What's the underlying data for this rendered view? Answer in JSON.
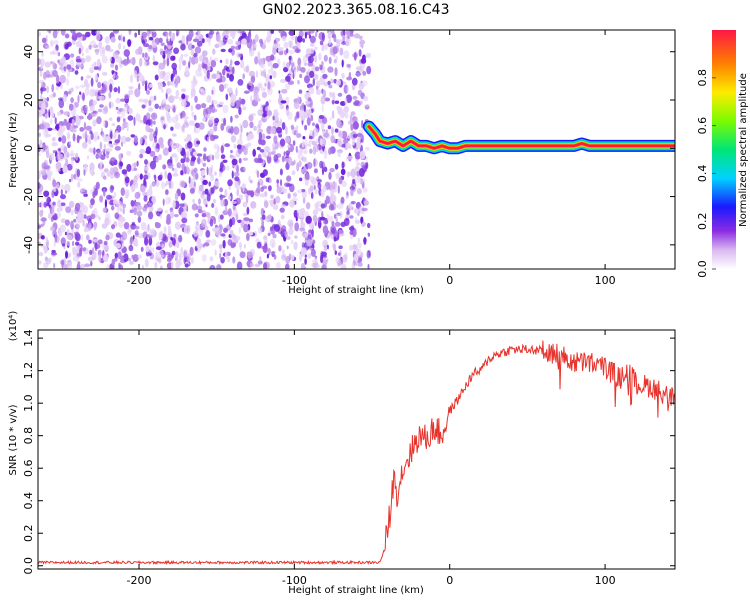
{
  "figure_title": "GN02.2023.365.08.16.C43",
  "chart_data": [
    {
      "type": "heatmap",
      "xlabel": "Height of straight line (km)",
      "ylabel": "Frequency (Hz)",
      "xlim": [
        -265,
        145
      ],
      "ylim": [
        -50,
        49
      ],
      "x_ticks": [
        -200,
        -100,
        0,
        100
      ],
      "y_ticks": [
        -40,
        -20,
        0,
        20,
        40
      ],
      "colorbar": {
        "label": "Normalized spectral amplitude",
        "range": [
          0,
          1
        ],
        "ticks": [
          0.0,
          0.2,
          0.4,
          0.6,
          0.8
        ]
      },
      "noise_region_x": [
        -265,
        -52
      ],
      "signal_track": {
        "x": [
          -52,
          -48,
          -45,
          -40,
          -35,
          -30,
          -25,
          -20,
          -15,
          -10,
          -5,
          0,
          5,
          10,
          20,
          40,
          60,
          75,
          80,
          85,
          90,
          100,
          120,
          145
        ],
        "y": [
          9,
          6,
          3,
          2,
          3,
          1,
          3,
          1,
          1,
          0,
          1,
          0,
          0,
          1,
          1,
          1,
          1,
          1,
          1,
          2,
          1,
          1,
          1,
          1
        ]
      }
    },
    {
      "type": "line",
      "xlabel": "Height of straight line (km)",
      "ylabel": "SNR (10 * v/v)",
      "y_scale_note": "(x10⁴)",
      "xlim": [
        -265,
        145
      ],
      "ylim": [
        -0.02,
        1.45
      ],
      "x_ticks": [
        -200,
        -100,
        0,
        100
      ],
      "y_ticks": [
        0.0,
        0.2,
        0.4,
        0.6,
        0.8,
        1.0,
        1.2,
        1.4
      ],
      "y_tick_labels": [
        "0.0",
        "0.2",
        "0.4",
        "0.6",
        "0.8",
        "1.0",
        "1.2",
        "1.4"
      ],
      "series": [
        {
          "color": "#e8332c",
          "x": [
            -265,
            -200,
            -100,
            -45,
            -42,
            -38,
            -36,
            -34,
            -30,
            -25,
            -20,
            -15,
            -10,
            -5,
            0,
            5,
            10,
            15,
            20,
            25,
            30,
            40,
            50,
            60,
            70,
            80,
            90,
            100,
            110,
            115,
            120,
            130,
            140,
            145
          ],
          "y": [
            0.02,
            0.02,
            0.02,
            0.02,
            0.1,
            0.35,
            0.55,
            0.45,
            0.6,
            0.7,
            0.8,
            0.78,
            0.85,
            0.8,
            0.95,
            1.02,
            1.1,
            1.18,
            1.2,
            1.27,
            1.3,
            1.33,
            1.33,
            1.32,
            1.3,
            1.25,
            1.25,
            1.22,
            1.15,
            1.2,
            1.12,
            1.1,
            1.05,
            1.02
          ]
        }
      ]
    }
  ]
}
